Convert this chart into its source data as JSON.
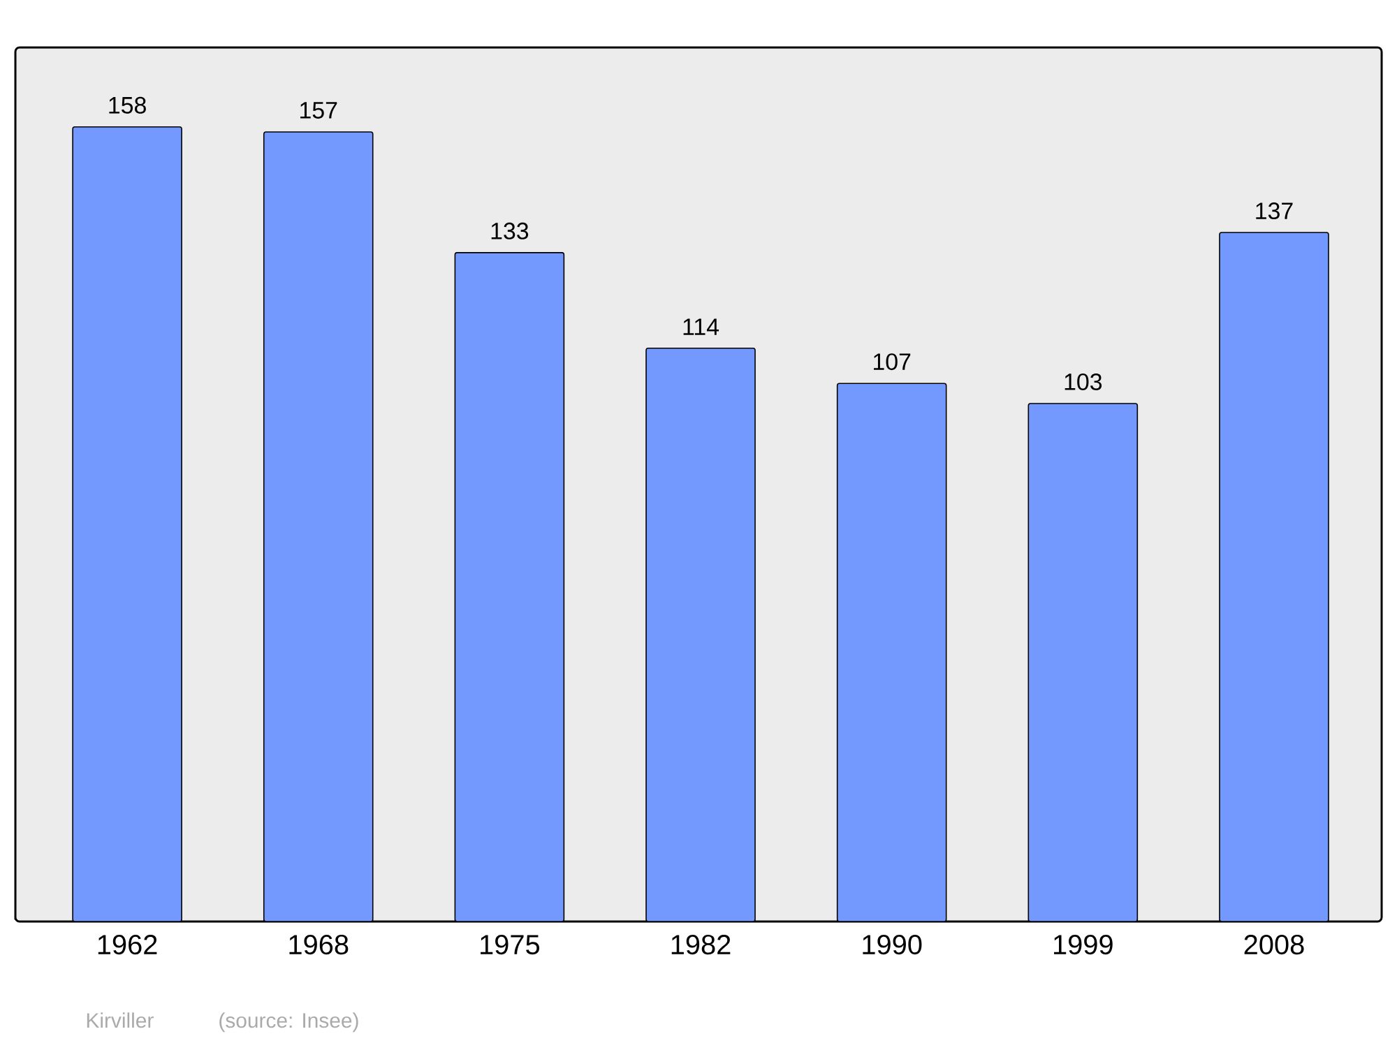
{
  "chart_data": {
    "type": "bar",
    "categories": [
      "1962",
      "1968",
      "1975",
      "1982",
      "1990",
      "1999",
      "2008"
    ],
    "values": [
      158,
      157,
      133,
      114,
      107,
      103,
      137
    ],
    "color": "#7399ff",
    "data_labels": true,
    "annotations": [
      "Kirviller",
      "(source: Insee)"
    ]
  }
}
